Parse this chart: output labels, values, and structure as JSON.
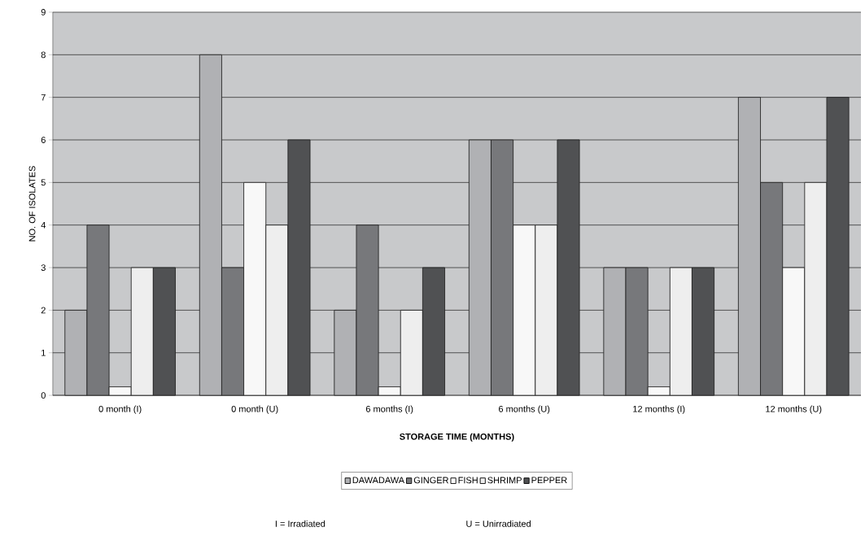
{
  "chart_data": {
    "type": "bar",
    "xlabel": "STORAGE TIME (MONTHS)",
    "ylabel": "NO. OF ISOLATES",
    "categories": [
      "0 month (I)",
      "0 month (U)",
      "6 months (I)",
      "6 months (U)",
      "12 months (I)",
      "12 months (U)"
    ],
    "series": [
      {
        "name": "DAWADAWA",
        "color": "#b0b1b4",
        "values": [
          2,
          8,
          2,
          6,
          3,
          7
        ]
      },
      {
        "name": "GINGER",
        "color": "#77787b",
        "values": [
          4,
          3,
          4,
          6,
          3,
          5
        ]
      },
      {
        "name": "FISH",
        "color": "#f8f8f8",
        "values": [
          0.2,
          5,
          0.2,
          4,
          0.2,
          3
        ]
      },
      {
        "name": "SHRIMP",
        "color": "#eeeeee",
        "values": [
          3,
          4,
          2,
          4,
          3,
          5
        ]
      },
      {
        "name": "PEPPER",
        "color": "#505153",
        "values": [
          3,
          6,
          3,
          6,
          3,
          7
        ]
      }
    ],
    "ylim": [
      0,
      9
    ],
    "yticks": [
      0,
      1,
      2,
      3,
      4,
      5,
      6,
      7,
      8,
      9
    ],
    "grid": "y",
    "legend": "bottom",
    "annotations": [
      "I = Irradiated",
      "U = Unirradiated"
    ]
  }
}
